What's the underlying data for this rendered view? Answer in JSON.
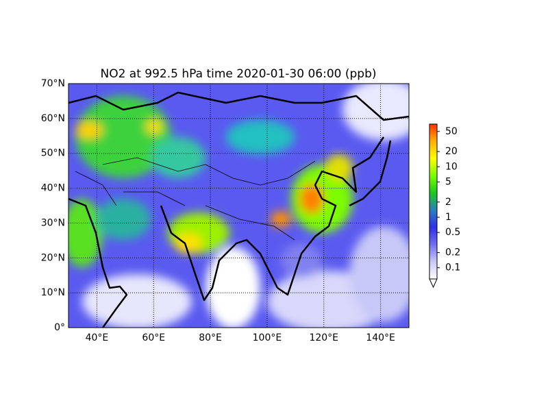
{
  "chart_data": {
    "type": "map",
    "title": "NO2 at 992.5 hPa time 2020-01-30 06:00 (ppb)",
    "xlim": [
      30,
      150
    ],
    "ylim": [
      0,
      70
    ],
    "xticks": [
      {
        "value": 40,
        "label": "40°E"
      },
      {
        "value": 60,
        "label": "60°E"
      },
      {
        "value": 80,
        "label": "80°E"
      },
      {
        "value": 100,
        "label": "100°E"
      },
      {
        "value": 120,
        "label": "120°E"
      },
      {
        "value": 140,
        "label": "140°E"
      }
    ],
    "yticks": [
      {
        "value": 0,
        "label": "0°"
      },
      {
        "value": 10,
        "label": "10°N"
      },
      {
        "value": 20,
        "label": "20°N"
      },
      {
        "value": 30,
        "label": "30°N"
      },
      {
        "value": 40,
        "label": "40°N"
      },
      {
        "value": 50,
        "label": "50°N"
      },
      {
        "value": 60,
        "label": "60°N"
      },
      {
        "value": 70,
        "label": "70°N"
      }
    ],
    "grid": true,
    "colorbar": {
      "scale": "log",
      "lim": [
        0.06,
        70
      ],
      "ticks": [
        0.1,
        0.2,
        0.5,
        1,
        2,
        5,
        10,
        20,
        50
      ],
      "colors": [
        "#ffffff",
        "#c8c8f8",
        "#7070f0",
        "#3030e8",
        "#2a7fc0",
        "#1ec81e",
        "#7cfc00",
        "#ffff00",
        "#ffb000",
        "#ff3000"
      ],
      "extend": "min"
    }
  }
}
